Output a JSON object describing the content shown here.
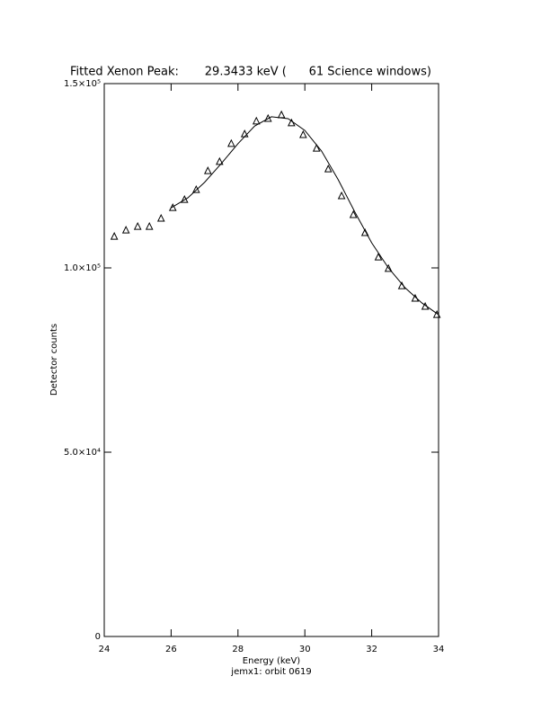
{
  "chart_data": {
    "type": "scatter",
    "title": "Fitted Xenon Peak:       29.3433 keV (      61 Science windows)",
    "subtitle": "jemx1: orbit 0619",
    "x_label": "Energy (keV)",
    "y_label": "Detector counts",
    "xlim": [
      24,
      34
    ],
    "ylim": [
      0,
      150000
    ],
    "xticks": [
      24,
      26,
      28,
      30,
      32,
      34
    ],
    "yticks": [
      0,
      {
        "value": 50000,
        "label": "5.0×10⁴"
      },
      {
        "value": 100000,
        "label": "1.0×10⁵"
      },
      {
        "value": 150000,
        "label": "1.5×10⁵"
      }
    ],
    "series": [
      {
        "marker": "triangle",
        "color": "#000000",
        "x": [
          24.3,
          24.65,
          25.0,
          25.35,
          25.7,
          26.05,
          26.4,
          26.75,
          27.1,
          27.45,
          27.8,
          28.2,
          28.55,
          28.9,
          29.3,
          29.6,
          29.95,
          30.35,
          30.7,
          31.1,
          31.45,
          31.8,
          32.2,
          32.5,
          32.9,
          33.3,
          33.6,
          33.95
        ],
        "values": [
          108500,
          110200,
          111200,
          111200,
          113400,
          116300,
          118500,
          121200,
          126300,
          128800,
          133700,
          136300,
          139800,
          140500,
          141500,
          139300,
          136100,
          132400,
          126800,
          119500,
          114400,
          109500,
          102900,
          99800,
          95100,
          91700,
          89500,
          87300
        ]
      },
      {
        "marker": "line",
        "color": "#000000",
        "x": [
          26.0,
          26.5,
          27.0,
          27.5,
          28.0,
          28.5,
          29.0,
          29.5,
          30.0,
          30.5,
          31.0,
          31.5,
          32.0,
          32.5,
          33.0,
          33.5,
          34.0
        ],
        "values": [
          116300,
          119000,
          123200,
          128300,
          133700,
          138500,
          141000,
          140500,
          137300,
          131700,
          123900,
          115100,
          106800,
          100000,
          94600,
          90500,
          87300
        ]
      }
    ]
  }
}
